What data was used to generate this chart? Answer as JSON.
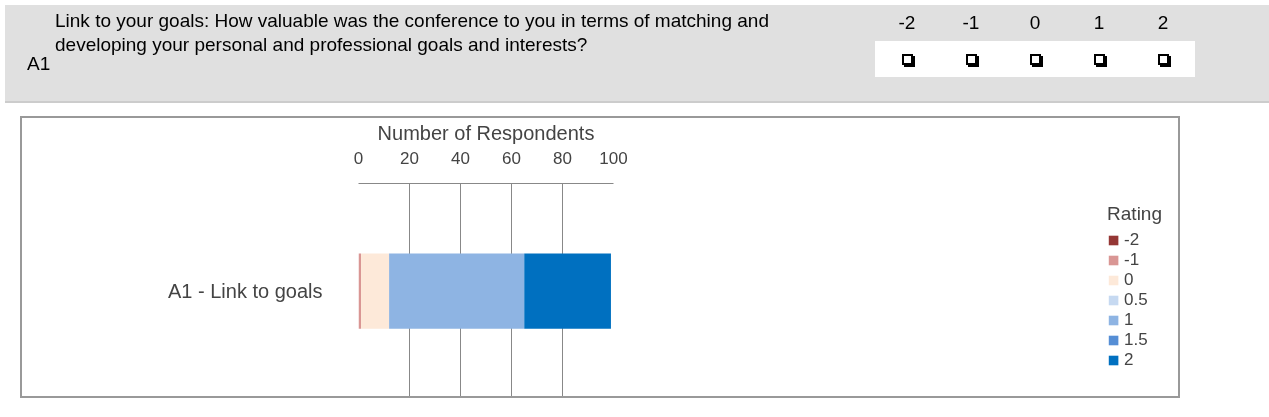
{
  "chart_data": {
    "type": "bar",
    "orientation": "horizontal",
    "stacked": true,
    "title": "Link to your goals: How valuable was the conference to you in terms of matching and developing your personal and professional goals and interests?",
    "annotations": [
      "A1",
      "-2",
      "-1",
      "0",
      "1",
      "2"
    ],
    "xlabel": "Number of Respondents",
    "legend_title": "Rating",
    "categories": [
      "A1 - Link to goals"
    ],
    "series": [
      {
        "name": "-2",
        "color": "#953735",
        "values": [
          0
        ]
      },
      {
        "name": "-1",
        "color": "#d99694",
        "values": [
          1
        ]
      },
      {
        "name": "0",
        "color": "#fde9d9",
        "values": [
          11
        ]
      },
      {
        "name": "0.5",
        "color": "#c6d9f1",
        "values": [
          0
        ]
      },
      {
        "name": "1",
        "color": "#8eb4e3",
        "values": [
          53
        ]
      },
      {
        "name": "1.5",
        "color": "#558ed5",
        "values": [
          0
        ]
      },
      {
        "name": "2",
        "color": "#0070c0",
        "values": [
          34
        ]
      }
    ],
    "xlim": [
      0,
      100
    ],
    "xticks": [
      0,
      20,
      40,
      60,
      80,
      100
    ],
    "grid": "x",
    "legend": "right"
  }
}
